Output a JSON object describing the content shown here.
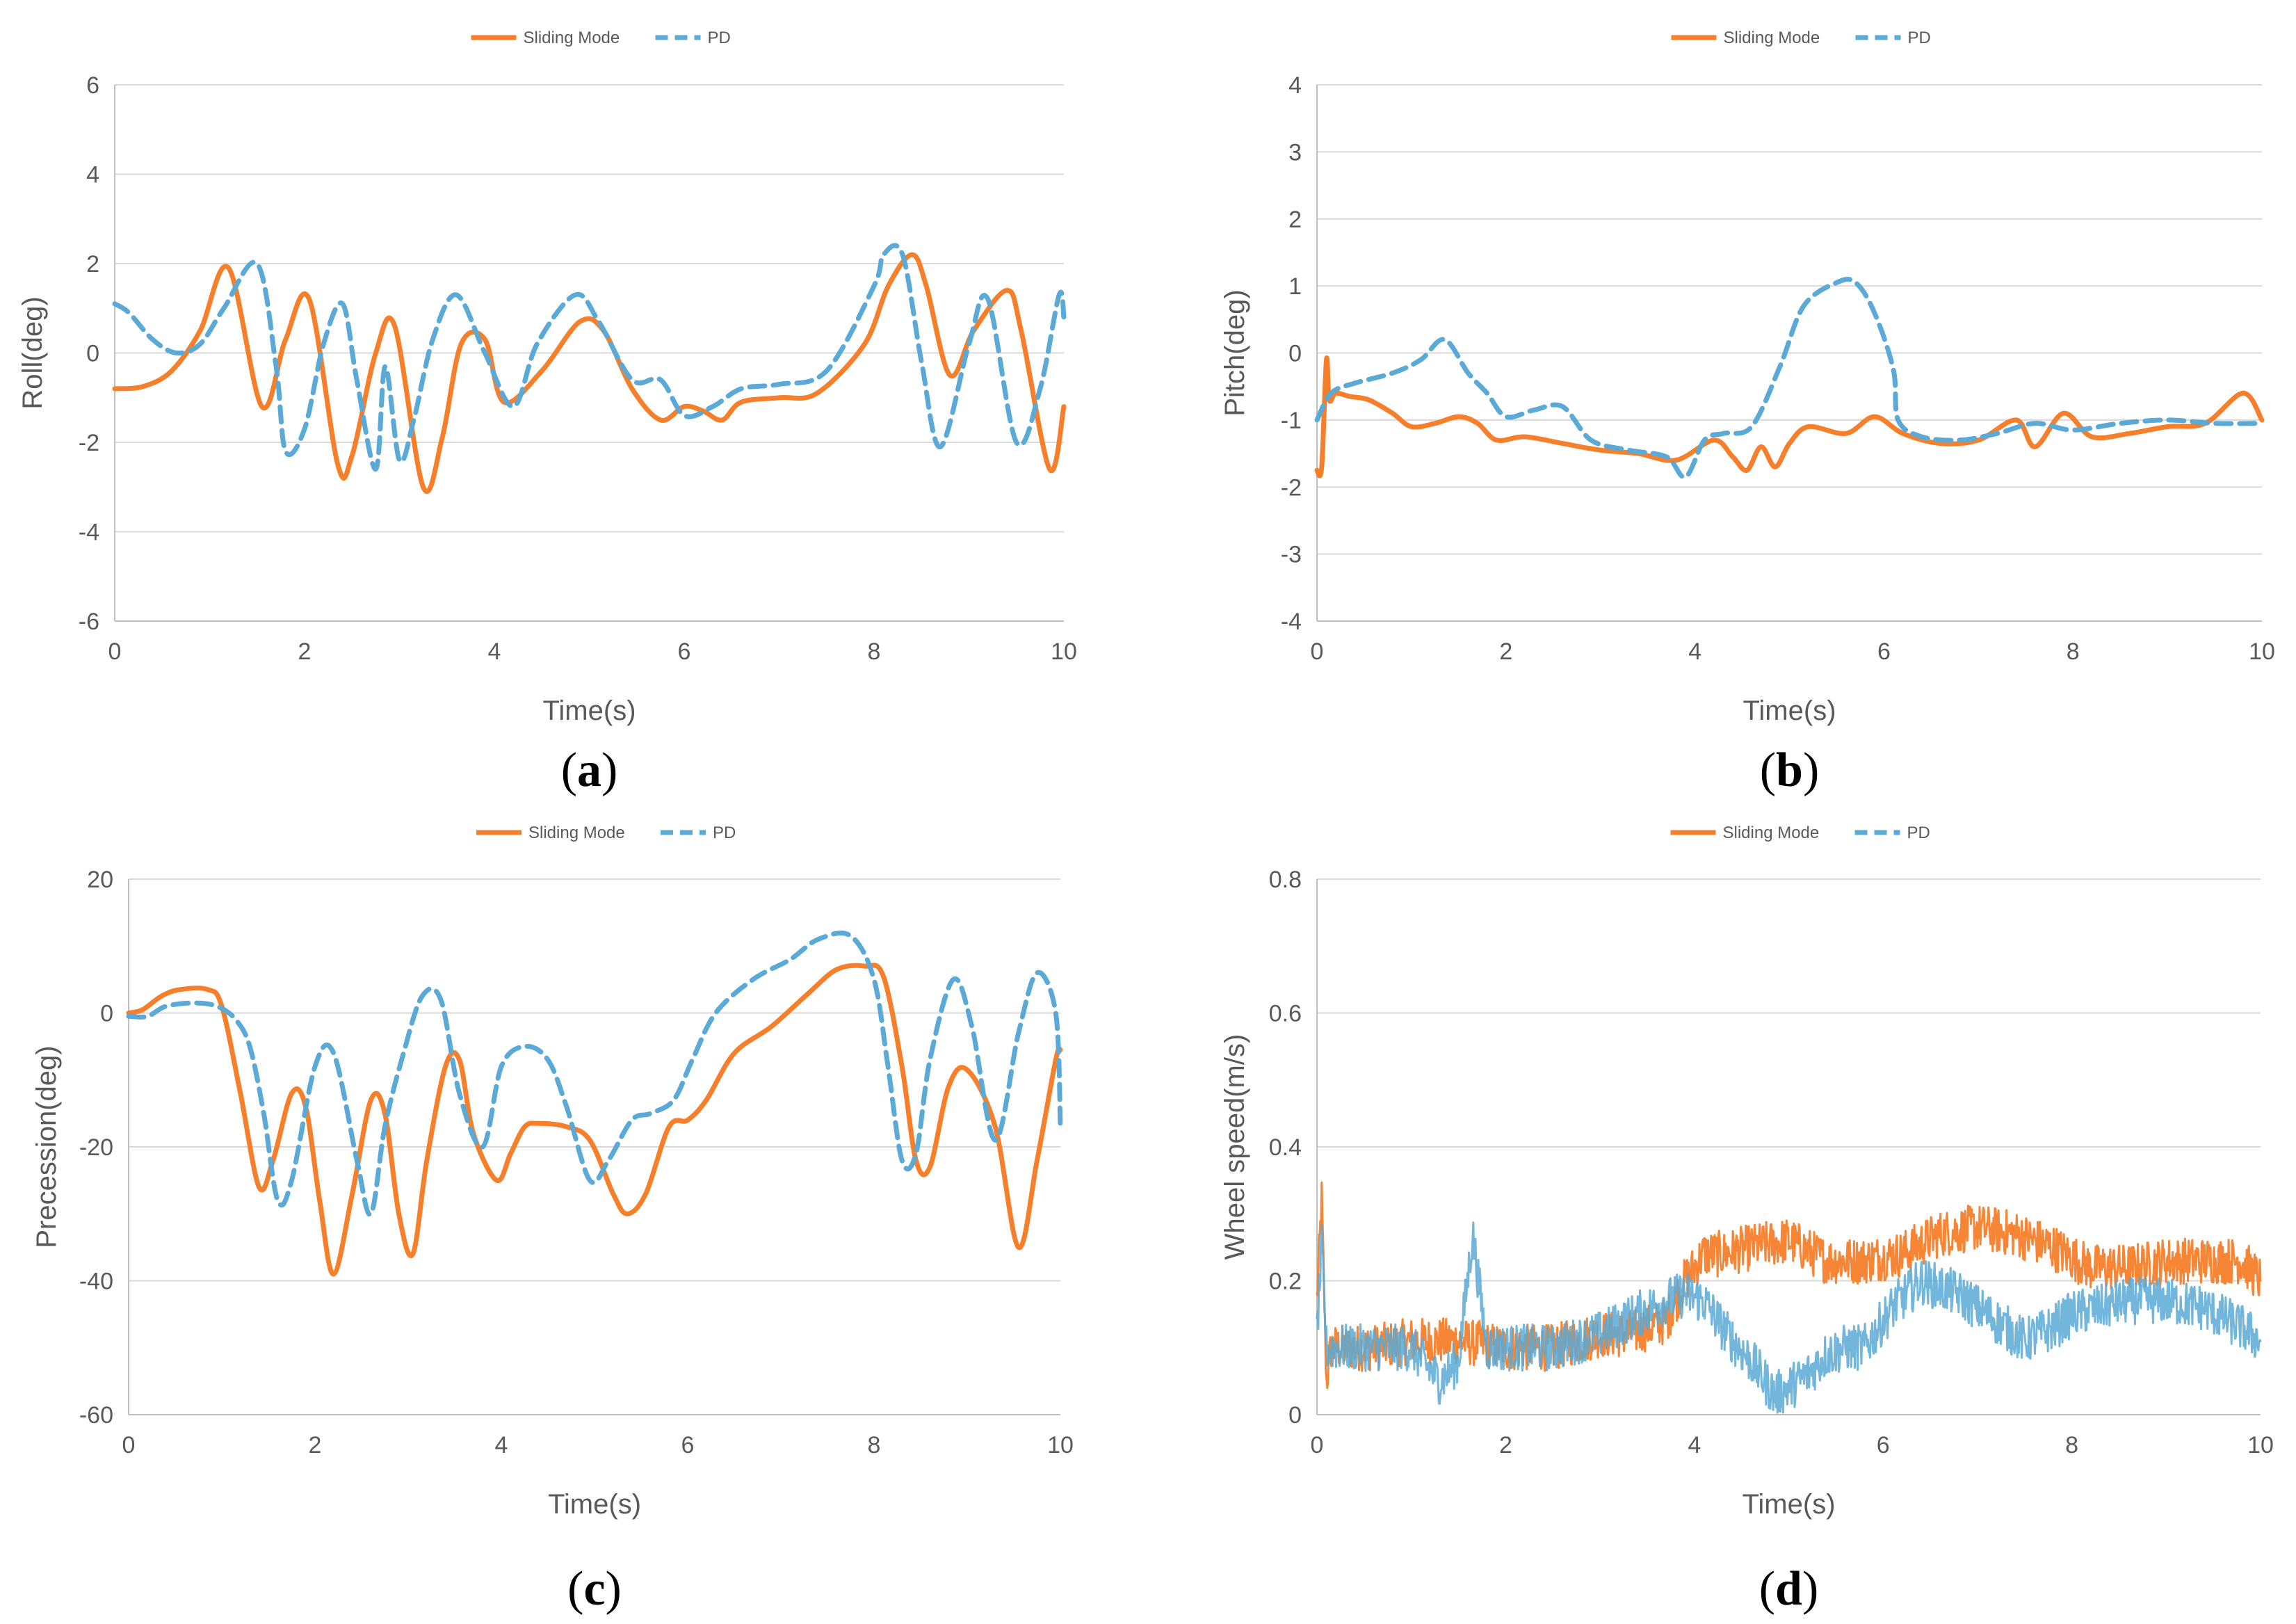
{
  "colors": {
    "sliding": "#F57F2A",
    "pd": "#5AA9D6",
    "grid": "#D9D9D9",
    "axis": "#BFBFBF",
    "text": "#595959"
  },
  "chart_data": [
    {
      "type": "line",
      "panel_label": "a",
      "xlabel": "Time(s)",
      "ylabel": "Roll(deg)",
      "xlim": [
        0,
        10
      ],
      "ylim": [
        -6,
        6
      ],
      "xticks": [
        0,
        2,
        4,
        6,
        8,
        10
      ],
      "yticks": [
        -6,
        -4,
        -2,
        0,
        2,
        4,
        6
      ],
      "grid": "horizontal",
      "legend": "top-center",
      "series": [
        {
          "name": "Sliding Mode",
          "style": "solid",
          "x": [
            0,
            0.3,
            0.6,
            0.9,
            1.2,
            1.55,
            1.8,
            2.05,
            2.35,
            2.5,
            2.75,
            2.95,
            3.25,
            3.45,
            3.65,
            3.9,
            4.1,
            4.5,
            4.9,
            5.15,
            5.45,
            5.75,
            6.0,
            6.2,
            6.4,
            6.6,
            7.0,
            7.4,
            7.9,
            8.15,
            8.4,
            8.55,
            8.8,
            9.05,
            9.4,
            9.55,
            9.85,
            10
          ],
          "values": [
            -0.8,
            -0.75,
            -0.4,
            0.5,
            1.9,
            -1.2,
            0.3,
            1.2,
            -2.5,
            -2.3,
            0.0,
            0.6,
            -3.0,
            -1.9,
            0.2,
            0.3,
            -1.1,
            -0.4,
            0.7,
            0.5,
            -0.8,
            -1.5,
            -1.2,
            -1.3,
            -1.5,
            -1.1,
            -1.0,
            -0.9,
            0.2,
            1.5,
            2.2,
            1.5,
            -0.5,
            0.5,
            1.4,
            0.5,
            -2.6,
            -1.2
          ]
        },
        {
          "name": "PD",
          "style": "dashed",
          "x": [
            0,
            0.15,
            0.4,
            0.65,
            0.9,
            1.15,
            1.5,
            1.7,
            1.8,
            2.0,
            2.2,
            2.4,
            2.55,
            2.75,
            2.85,
            3.0,
            3.15,
            3.35,
            3.6,
            3.9,
            4.2,
            4.45,
            4.85,
            5.1,
            5.45,
            5.75,
            6.0,
            6.3,
            6.6,
            7.0,
            7.5,
            8.0,
            8.1,
            8.3,
            8.5,
            8.7,
            9.0,
            9.2,
            9.5,
            9.75,
            9.95,
            10
          ],
          "values": [
            1.1,
            0.9,
            0.3,
            0.0,
            0.2,
            1.0,
            2.0,
            -0.3,
            -2.2,
            -1.7,
            0.2,
            1.1,
            -0.6,
            -2.6,
            -0.3,
            -2.4,
            -1.5,
            0.3,
            1.3,
            0.0,
            -1.2,
            0.2,
            1.3,
            0.7,
            -0.6,
            -0.6,
            -1.4,
            -1.2,
            -0.8,
            -0.7,
            -0.4,
            1.5,
            2.2,
            2.2,
            -0.2,
            -2.1,
            0.2,
            1.2,
            -2.0,
            -0.8,
            1.3,
            0.8
          ]
        }
      ]
    },
    {
      "type": "line",
      "panel_label": "b",
      "xlabel": "Time(s)",
      "ylabel": "Pitch(deg)",
      "xlim": [
        0,
        10
      ],
      "ylim": [
        -4,
        4
      ],
      "xticks": [
        0,
        2,
        4,
        6,
        8,
        10
      ],
      "yticks": [
        -4,
        -3,
        -2,
        -1,
        0,
        1,
        2,
        3,
        4
      ],
      "grid": "horizontal",
      "legend": "top-center",
      "series": [
        {
          "name": "Sliding Mode",
          "style": "solid",
          "x": [
            0,
            0.05,
            0.1,
            0.13,
            0.2,
            0.35,
            0.55,
            0.8,
            1.0,
            1.25,
            1.5,
            1.7,
            1.9,
            2.2,
            2.6,
            3.0,
            3.4,
            3.8,
            4.2,
            4.4,
            4.55,
            4.7,
            4.85,
            5.0,
            5.2,
            5.6,
            5.9,
            6.2,
            6.6,
            7.0,
            7.4,
            7.6,
            7.9,
            8.2,
            8.6,
            9.0,
            9.4,
            9.8,
            10
          ],
          "values": [
            -1.75,
            -1.7,
            -0.1,
            -0.7,
            -0.6,
            -0.65,
            -0.7,
            -0.9,
            -1.1,
            -1.05,
            -0.95,
            -1.05,
            -1.3,
            -1.25,
            -1.35,
            -1.45,
            -1.5,
            -1.6,
            -1.3,
            -1.55,
            -1.75,
            -1.4,
            -1.7,
            -1.35,
            -1.1,
            -1.2,
            -0.95,
            -1.2,
            -1.35,
            -1.3,
            -1.0,
            -1.4,
            -0.9,
            -1.25,
            -1.2,
            -1.1,
            -1.05,
            -0.6,
            -1.0
          ]
        },
        {
          "name": "PD",
          "style": "dashed",
          "x": [
            0,
            0.15,
            0.4,
            0.8,
            1.1,
            1.35,
            1.6,
            1.8,
            2.0,
            2.3,
            2.6,
            2.9,
            3.3,
            3.7,
            3.9,
            4.1,
            4.3,
            4.6,
            4.9,
            5.15,
            5.5,
            5.7,
            5.9,
            6.1,
            6.15,
            6.4,
            6.8,
            7.2,
            7.6,
            8.0,
            8.5,
            9.0,
            9.5,
            10
          ],
          "values": [
            -1.0,
            -0.6,
            -0.45,
            -0.3,
            -0.1,
            0.2,
            -0.3,
            -0.6,
            -0.95,
            -0.85,
            -0.8,
            -1.3,
            -1.45,
            -1.55,
            -1.85,
            -1.3,
            -1.2,
            -1.1,
            -0.2,
            0.7,
            1.05,
            1.05,
            0.6,
            -0.25,
            -1.0,
            -1.25,
            -1.3,
            -1.2,
            -1.05,
            -1.15,
            -1.05,
            -1.0,
            -1.05,
            -1.05
          ]
        }
      ]
    },
    {
      "type": "line",
      "panel_label": "c",
      "xlabel": "Time(s)",
      "ylabel": "Precession(deg)",
      "xlim": [
        0,
        10
      ],
      "ylim": [
        -60,
        20
      ],
      "xticks": [
        0,
        2,
        4,
        6,
        8,
        10
      ],
      "yticks": [
        -60,
        -40,
        -20,
        0,
        20
      ],
      "grid": "horizontal",
      "legend": "top-center",
      "series": [
        {
          "name": "Sliding Mode",
          "style": "solid",
          "x": [
            0,
            0.15,
            0.35,
            0.55,
            0.85,
            1.0,
            1.2,
            1.4,
            1.55,
            1.75,
            1.9,
            2.05,
            2.2,
            2.4,
            2.6,
            2.75,
            2.9,
            3.05,
            3.2,
            3.4,
            3.55,
            3.7,
            3.95,
            4.1,
            4.25,
            4.4,
            4.7,
            4.95,
            5.2,
            5.35,
            5.55,
            5.8,
            6.0,
            6.2,
            6.5,
            6.9,
            7.3,
            7.6,
            7.9,
            8.1,
            8.3,
            8.45,
            8.6,
            8.8,
            9.0,
            9.3,
            9.55,
            9.75,
            9.95,
            10
          ],
          "values": [
            0,
            0.5,
            2.5,
            3.5,
            3.5,
            1.0,
            -12.0,
            -26.0,
            -22.0,
            -12.0,
            -14.0,
            -28.0,
            -39.0,
            -27.0,
            -13.0,
            -15.0,
            -30.0,
            -36.0,
            -22.0,
            -8.0,
            -7.0,
            -18.0,
            -25.0,
            -21.0,
            -17.0,
            -16.5,
            -17.0,
            -19.0,
            -27.0,
            -30.0,
            -27.0,
            -17.0,
            -16.0,
            -13.0,
            -6.0,
            -2.0,
            3.0,
            6.5,
            7.0,
            5.5,
            -8.0,
            -22.0,
            -23.0,
            -11.0,
            -8.5,
            -17.0,
            -35.0,
            -22.0,
            -7.0,
            -5.5
          ]
        },
        {
          "name": "PD",
          "style": "dashed",
          "x": [
            0,
            0.2,
            0.4,
            0.7,
            0.95,
            1.15,
            1.3,
            1.45,
            1.6,
            1.75,
            2.0,
            2.2,
            2.45,
            2.6,
            2.75,
            2.95,
            3.15,
            3.35,
            3.55,
            3.8,
            4.0,
            4.25,
            4.5,
            4.7,
            4.95,
            5.15,
            5.4,
            5.6,
            5.85,
            6.05,
            6.3,
            6.7,
            7.1,
            7.4,
            7.75,
            8.0,
            8.15,
            8.3,
            8.45,
            8.6,
            8.85,
            9.05,
            9.3,
            9.55,
            9.75,
            9.95,
            10
          ],
          "values": [
            -0.5,
            -0.5,
            1.0,
            1.5,
            1.0,
            -1.0,
            -5.0,
            -15.0,
            -28.0,
            -25.0,
            -8.0,
            -6.0,
            -22.0,
            -30.0,
            -17.0,
            -6.0,
            2.5,
            2.0,
            -12.0,
            -20.0,
            -8.0,
            -5.0,
            -7.0,
            -14.0,
            -25.0,
            -22.0,
            -16.0,
            -15.0,
            -13.0,
            -7.0,
            0.0,
            5.0,
            8.0,
            11.0,
            11.5,
            5.0,
            -8.0,
            -22.0,
            -21.0,
            -7.0,
            5.0,
            -2.0,
            -19.0,
            -3.0,
            6.0,
            0.0,
            -17.0
          ]
        }
      ]
    },
    {
      "type": "line",
      "panel_label": "d",
      "xlabel": "Time(s)",
      "ylabel": "Wheel speed(m/s)",
      "xlim": [
        0,
        10
      ],
      "ylim": [
        0,
        0.8
      ],
      "xticks": [
        0,
        2,
        4,
        6,
        8,
        10
      ],
      "yticks": [
        0,
        0.2,
        0.4,
        0.6,
        0.8
      ],
      "grid": "horizontal",
      "legend": "top-center",
      "series": [
        {
          "name": "Sliding Mode",
          "style": "solid",
          "x": [
            0,
            0.05,
            0.1,
            0.15,
            0.3,
            0.6,
            1.0,
            1.5,
            2.0,
            2.5,
            3.0,
            3.3,
            3.5,
            3.7,
            3.9,
            4.1,
            4.3,
            4.6,
            5.0,
            5.4,
            5.8,
            6.2,
            6.6,
            7.0,
            7.4,
            7.8,
            8.2,
            8.6,
            9.0,
            9.4,
            9.8,
            10
          ],
          "values": [
            0.17,
            0.32,
            0.05,
            0.1,
            0.1,
            0.1,
            0.11,
            0.11,
            0.1,
            0.1,
            0.12,
            0.12,
            0.13,
            0.14,
            0.2,
            0.24,
            0.24,
            0.25,
            0.26,
            0.23,
            0.23,
            0.24,
            0.27,
            0.28,
            0.27,
            0.25,
            0.22,
            0.22,
            0.23,
            0.23,
            0.23,
            0.2
          ]
        },
        {
          "name": "PD",
          "style": "dashed",
          "x": [
            0,
            0.05,
            0.1,
            0.15,
            0.3,
            0.6,
            1.0,
            1.3,
            1.5,
            1.65,
            1.8,
            2.0,
            2.5,
            3.0,
            3.4,
            3.7,
            3.9,
            4.1,
            4.35,
            4.6,
            4.85,
            5.0,
            5.2,
            5.4,
            5.6,
            5.8,
            6.1,
            6.4,
            6.8,
            7.2,
            7.5,
            7.8,
            8.0,
            8.3,
            8.6,
            9.0,
            9.4,
            9.8,
            10
          ],
          "values": [
            0.12,
            0.25,
            0.1,
            0.1,
            0.1,
            0.1,
            0.1,
            0.05,
            0.08,
            0.27,
            0.1,
            0.1,
            0.1,
            0.12,
            0.15,
            0.17,
            0.18,
            0.17,
            0.12,
            0.08,
            0.03,
            0.04,
            0.06,
            0.09,
            0.1,
            0.1,
            0.16,
            0.2,
            0.18,
            0.14,
            0.11,
            0.13,
            0.15,
            0.16,
            0.17,
            0.17,
            0.16,
            0.13,
            0.11
          ]
        }
      ]
    }
  ]
}
